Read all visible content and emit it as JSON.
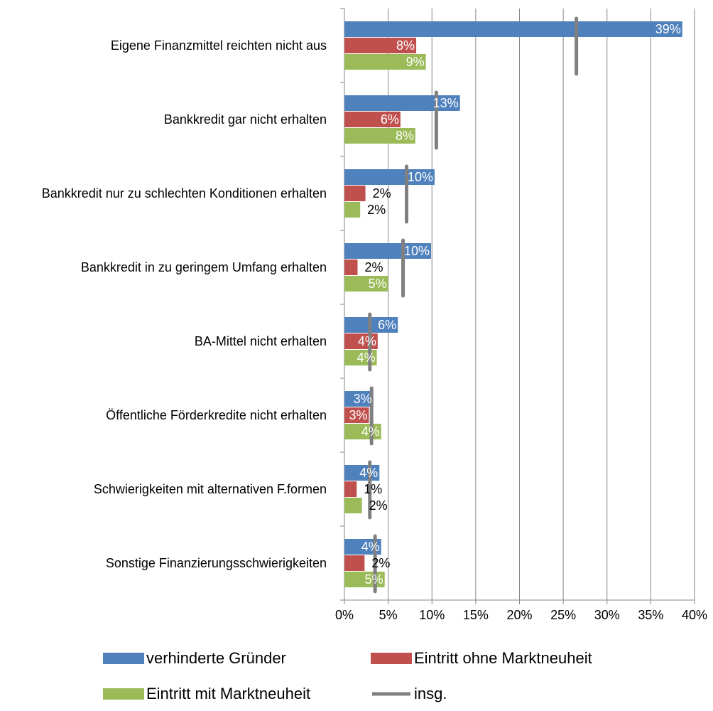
{
  "chart_data": {
    "type": "hbar",
    "categories": [
      "Eigene Finanzmittel reichten nicht aus",
      "Bankkredit gar nicht erhalten",
      "Bankkredit nur zu schlechten Konditionen erhalten",
      "Bankkredit in zu geringem Umfang erhalten",
      "BA-Mittel nicht erhalten",
      "Öffentliche Förderkredite nicht erhalten",
      "Schwierigkeiten mit alternativen F.formen",
      "Sonstige Finanzierungsschwierigkeiten"
    ],
    "series": [
      {
        "name": "verhinderte Gründer",
        "color": "#4f81bd",
        "values": [
          38.6,
          13.2,
          10.3,
          9.9,
          6.1,
          3.3,
          4.0,
          4.2
        ],
        "value_labels": [
          "39%",
          "13%",
          "10%",
          "10%",
          "6%",
          "3%",
          "4%",
          "4%"
        ]
      },
      {
        "name": "Eintritt ohne Marktneuheit",
        "color": "#c0504d",
        "values": [
          8.2,
          6.4,
          2.4,
          1.5,
          3.8,
          2.8,
          1.4,
          2.3
        ],
        "value_labels": [
          "8%",
          "6%",
          "2%",
          "2%",
          "4%",
          "3%",
          "1%",
          "2%"
        ]
      },
      {
        "name": "Eintritt mit Marktneuheit",
        "color": "#9bbb59",
        "values": [
          9.3,
          8.1,
          1.8,
          5.0,
          3.7,
          4.2,
          2.0,
          4.6
        ],
        "value_labels": [
          "9%",
          "8%",
          "2%",
          "5%",
          "4%",
          "4%",
          "2%",
          "5%"
        ]
      },
      {
        "name": "insg.",
        "color": "#808080",
        "type": "marker",
        "values": [
          26.5,
          10.5,
          7.1,
          6.7,
          2.9,
          3.1,
          2.9,
          3.5
        ]
      }
    ],
    "xlim": [
      0,
      40
    ],
    "xticks": [
      {
        "value": 0,
        "label": "0%"
      },
      {
        "value": 5,
        "label": "5%"
      },
      {
        "value": 10,
        "label": "10%"
      },
      {
        "value": 15,
        "label": "15%"
      },
      {
        "value": 20,
        "label": "20%"
      },
      {
        "value": 25,
        "label": "25%"
      },
      {
        "value": 30,
        "label": "30%"
      },
      {
        "value": 35,
        "label": "35%"
      },
      {
        "value": 40,
        "label": "40%"
      }
    ],
    "grid": true,
    "legend": "bottom"
  }
}
